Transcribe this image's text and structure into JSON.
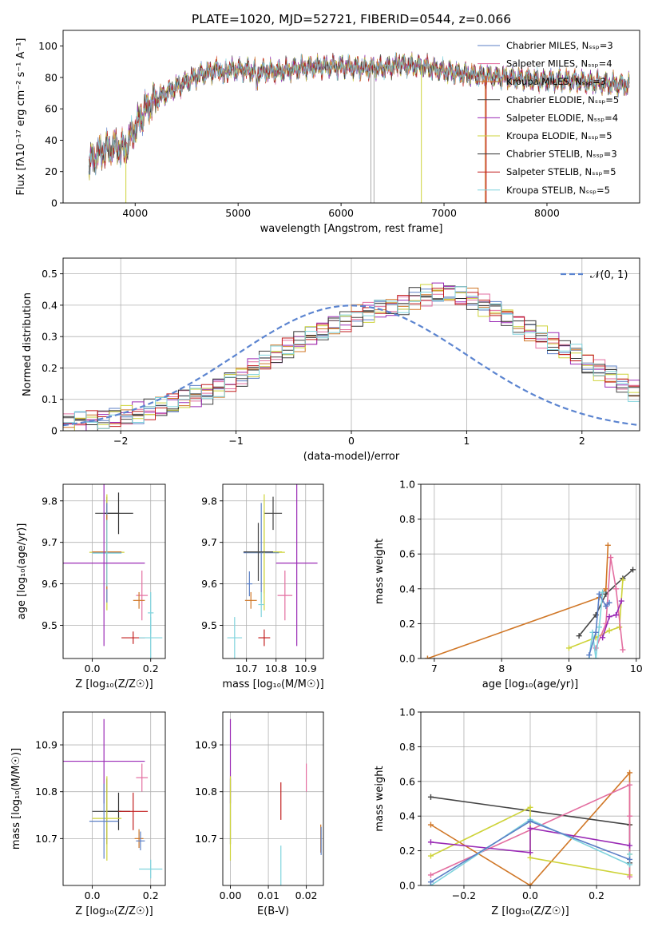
{
  "chart_data": [
    {
      "id": "spectrum",
      "type": "line",
      "title": "PLATE=1020, MJD=52721, FIBERID=0544, z=0.066",
      "xlabel": "wavelength [Angstrom, rest frame]",
      "ylabel": "Flux [fλ10⁻¹⁷ erg cm⁻² s⁻¹ A⁻¹]",
      "xlim": [
        3300,
        8900
      ],
      "ylim": [
        0,
        110
      ],
      "xticks": [
        4000,
        5000,
        6000,
        7000,
        8000
      ],
      "yticks": [
        0,
        20,
        40,
        60,
        80,
        100
      ],
      "grid": false,
      "legend_position": "top-right",
      "series": [
        {
          "name": "Chabrier MILES, Nₛₛₚ=3",
          "color": "#5b7fc6"
        },
        {
          "name": "Salpeter MILES, Nₛₛₚ=4",
          "color": "#e36ea0"
        },
        {
          "name": "Kroupa MILES, Nₛₛₚ=3",
          "color": "#d07727"
        },
        {
          "name": "Chabrier ELODIE, Nₛₛₚ=5",
          "color": "#444444"
        },
        {
          "name": "Salpeter ELODIE, Nₛₛₚ=4",
          "color": "#9a2ab5"
        },
        {
          "name": "Kroupa ELODIE, Nₛₛₚ=5",
          "color": "#ced33a"
        },
        {
          "name": "Chabrier STELIB, Nₛₛₚ=3",
          "color": "#333333"
        },
        {
          "name": "Salpeter STELIB, Nₛₛₚ=5",
          "color": "#c21e1e"
        },
        {
          "name": "Kroupa STELIB, Nₛₛₚ=5",
          "color": "#7fd3dd"
        }
      ],
      "continuum": {
        "x": [
          3550,
          3650,
          3800,
          3900,
          4000,
          4100,
          4200,
          4400,
          4600,
          4800,
          5000,
          5200,
          5400,
          5600,
          5800,
          6000,
          6200,
          6400,
          6600,
          6800,
          7000,
          7200,
          7400,
          7600,
          7800,
          8000,
          8200,
          8400,
          8600,
          8800
        ],
        "y": [
          25,
          32,
          36,
          34,
          48,
          60,
          66,
          74,
          81,
          85,
          85,
          84,
          84,
          86,
          87,
          87,
          86,
          86,
          88,
          87,
          84,
          82,
          81,
          80,
          79,
          78,
          78,
          77,
          76,
          75
        ]
      },
      "dropouts": [
        {
          "x": 3910,
          "color": "#ced33a"
        },
        {
          "x": 6290,
          "color": "#aaaaaa"
        },
        {
          "x": 6320,
          "color": "#aaaaaa"
        },
        {
          "x": 6780,
          "color": "#ced33a"
        },
        {
          "x": 7400,
          "color": "#d07727"
        },
        {
          "x": 7410,
          "color": "#c21e1e"
        }
      ]
    },
    {
      "id": "residuals",
      "type": "area",
      "xlabel": "(data-model)/error",
      "ylabel": "Normed distribution",
      "xlim": [
        -2.5,
        2.5
      ],
      "ylim": [
        0,
        0.55
      ],
      "xticks": [
        -2,
        -1,
        0,
        1,
        2
      ],
      "yticks": [
        0.0,
        0.1,
        0.2,
        0.3,
        0.4,
        0.5
      ],
      "grid": true,
      "legend": [
        {
          "name": "𝒩(0, 1)",
          "color": "#5b84d0"
        }
      ],
      "bin_width": 0.1,
      "bin_start": -2.5,
      "base_values": [
        0.025,
        0.028,
        0.032,
        0.036,
        0.043,
        0.05,
        0.056,
        0.065,
        0.075,
        0.085,
        0.1,
        0.11,
        0.12,
        0.14,
        0.16,
        0.175,
        0.2,
        0.22,
        0.24,
        0.26,
        0.28,
        0.3,
        0.32,
        0.34,
        0.35,
        0.37,
        0.38,
        0.39,
        0.39,
        0.4,
        0.42,
        0.43,
        0.44,
        0.44,
        0.43,
        0.42,
        0.4,
        0.38,
        0.36,
        0.34,
        0.32,
        0.3,
        0.28,
        0.26,
        0.24,
        0.21,
        0.19,
        0.17,
        0.15,
        0.13,
        0.11,
        0.1,
        0.085,
        0.075,
        0.065,
        0.055,
        0.045,
        0.04,
        0.035,
        0.03
      ],
      "series_colors": [
        "#5b7fc6",
        "#e36ea0",
        "#d07727",
        "#444444",
        "#9a2ab5",
        "#ced33a",
        "#333333",
        "#c21e1e",
        "#7fd3dd"
      ]
    },
    {
      "id": "age-vs-Z",
      "type": "scatter",
      "xlabel": "Z [log₁₀(Z/Z☉)]",
      "ylabel": "age  [log₁₀(age/yr)]",
      "xlim": [
        -0.1,
        0.25
      ],
      "ylim": [
        9.42,
        9.84
      ],
      "xticks": [
        0.0,
        0.2
      ],
      "xticklabels": [
        "0.0",
        "0.2"
      ],
      "yticks": [
        9.5,
        9.6,
        9.7,
        9.8
      ],
      "yticklabels": [
        "9.5",
        "9.6",
        "9.7",
        "9.8"
      ],
      "grid": true,
      "points": [
        {
          "x": 0.05,
          "xerr": 0.04,
          "y": 9.77,
          "yerr": 0.04,
          "color": "#444444"
        },
        {
          "x": 0.09,
          "xerr": 0.05,
          "y": 9.77,
          "yerr": 0.05,
          "color": "#333333"
        },
        {
          "x": 0.05,
          "xerr": 0.06,
          "y": 9.676,
          "yerr": 0.14,
          "color": "#ced33a"
        },
        {
          "x": 0.05,
          "xerr": 0.05,
          "y": 9.675,
          "yerr": 0.12,
          "color": "#5b7fc6"
        },
        {
          "x": 0.05,
          "xerr": 0.05,
          "y": 9.677,
          "yerr": 0.09,
          "color": "#d07727"
        },
        {
          "x": 0.05,
          "xerr": 0.05,
          "y": 9.674,
          "yerr": 0.08,
          "color": "#7fd3dd"
        },
        {
          "x": 0.04,
          "xerr": 0.14,
          "y": 9.65,
          "yerr": 0.2,
          "color": "#9a2ab5"
        },
        {
          "x": 0.17,
          "xerr": 0.02,
          "y": 9.572,
          "yerr": 0.06,
          "color": "#e36ea0"
        },
        {
          "x": 0.16,
          "xerr": 0.02,
          "y": 9.56,
          "yerr": 0.02,
          "color": "#d07727"
        },
        {
          "x": 0.2,
          "xerr": 0.01,
          "y": 9.53,
          "yerr": 0.05,
          "color": "#7fd3dd"
        },
        {
          "x": 0.14,
          "xerr": 0.04,
          "y": 9.47,
          "yerr": 0.015,
          "color": "#c21e1e"
        },
        {
          "x": 0.2,
          "xerr": 0.04,
          "y": 9.47,
          "yerr": 0.05,
          "color": "#7fd3dd"
        }
      ]
    },
    {
      "id": "age-vs-mass",
      "type": "scatter",
      "xlabel": "mass [log₁₀(M/M☉)]",
      "xlim": [
        10.62,
        10.96
      ],
      "ylim": [
        9.42,
        9.84
      ],
      "xticks": [
        10.7,
        10.8,
        10.9
      ],
      "xticklabels": [
        "10.7",
        "10.8",
        "10.9"
      ],
      "yticks": [
        9.5,
        9.6,
        9.7,
        9.8
      ],
      "yticklabels": [
        "9.5",
        "9.6",
        "9.7",
        "9.8"
      ],
      "grid": true,
      "points": [
        {
          "x": 10.79,
          "xerr": 0.03,
          "y": 9.77,
          "yerr": 0.04,
          "color": "#444444"
        },
        {
          "x": 10.76,
          "xerr": 0.07,
          "y": 9.676,
          "yerr": 0.14,
          "color": "#ced33a"
        },
        {
          "x": 10.75,
          "xerr": 0.06,
          "y": 9.675,
          "yerr": 0.12,
          "color": "#5b7fc6"
        },
        {
          "x": 10.76,
          "xerr": 0.06,
          "y": 9.677,
          "yerr": 0.1,
          "color": "#ced33a"
        },
        {
          "x": 10.74,
          "xerr": 0.05,
          "y": 9.677,
          "yerr": 0.07,
          "color": "#444444"
        },
        {
          "x": 10.87,
          "xerr": 0.07,
          "y": 9.65,
          "yerr": 0.2,
          "color": "#9a2ab5"
        },
        {
          "x": 10.71,
          "xerr": 0.01,
          "y": 9.6,
          "yerr": 0.03,
          "color": "#5b7fc6"
        },
        {
          "x": 10.83,
          "xerr": 0.025,
          "y": 9.572,
          "yerr": 0.06,
          "color": "#e36ea0"
        },
        {
          "x": 10.715,
          "xerr": 0.02,
          "y": 9.56,
          "yerr": 0.02,
          "color": "#d07727"
        },
        {
          "x": 10.66,
          "xerr": 0.025,
          "y": 9.47,
          "yerr": 0.05,
          "color": "#7fd3dd"
        },
        {
          "x": 10.76,
          "xerr": 0.02,
          "y": 9.47,
          "yerr": 0.02,
          "color": "#c21e1e"
        },
        {
          "x": 10.75,
          "xerr": 0.01,
          "y": 9.55,
          "yerr": 0.03,
          "color": "#7fd3dd"
        }
      ]
    },
    {
      "id": "weight-vs-age",
      "type": "line",
      "xlabel": "age  [log₁₀(age/yr)]",
      "ylabel": "mass weight",
      "xlim": [
        6.8,
        10.05
      ],
      "ylim": [
        0,
        1
      ],
      "xticks": [
        7,
        8,
        9,
        10
      ],
      "xticklabels": [
        "7",
        "8",
        "9",
        "10"
      ],
      "yticks": [
        0.0,
        0.2,
        0.4,
        0.6,
        0.8,
        1.0
      ],
      "yticklabels": [
        "0.0",
        "0.2",
        "0.4",
        "0.6",
        "0.8",
        "1.0"
      ],
      "grid": true,
      "series": [
        {
          "color": "#d07727",
          "x": [
            6.9,
            9.45,
            9.55,
            9.58
          ],
          "y": [
            0.0,
            0.35,
            0.4,
            0.65
          ]
        },
        {
          "color": "#444444",
          "x": [
            9.15,
            9.4,
            9.55,
            9.8,
            9.95
          ],
          "y": [
            0.13,
            0.25,
            0.37,
            0.46,
            0.51
          ]
        },
        {
          "color": "#ced33a",
          "x": [
            9.0,
            9.4,
            9.6,
            9.75,
            9.8
          ],
          "y": [
            0.06,
            0.12,
            0.16,
            0.18,
            0.45
          ]
        },
        {
          "color": "#e36ea0",
          "x": [
            9.4,
            9.55,
            9.62,
            9.7,
            9.8
          ],
          "y": [
            0.06,
            0.2,
            0.58,
            0.4,
            0.05
          ]
        },
        {
          "color": "#9a2ab5",
          "x": [
            9.5,
            9.6,
            9.7,
            9.78
          ],
          "y": [
            0.12,
            0.24,
            0.25,
            0.33
          ]
        },
        {
          "color": "#7fd3dd",
          "x": [
            9.3,
            9.35,
            9.4,
            9.45,
            9.5
          ],
          "y": [
            0.0,
            0.15,
            0.0,
            0.18,
            0.38
          ]
        },
        {
          "color": "#5b7fc6",
          "x": [
            9.3,
            9.4,
            9.45,
            9.55,
            9.6
          ],
          "y": [
            0.02,
            0.15,
            0.37,
            0.3,
            0.32
          ]
        }
      ]
    },
    {
      "id": "mass-vs-Z",
      "type": "scatter",
      "xlabel": "Z [log₁₀(Z/Z☉)]",
      "ylabel": "mass [log₁₀(M/M☉)]",
      "xlim": [
        -0.1,
        0.25
      ],
      "ylim": [
        10.6,
        10.97
      ],
      "xticks": [
        0.0,
        0.2
      ],
      "xticklabels": [
        "0.0",
        "0.2"
      ],
      "yticks": [
        10.7,
        10.8,
        10.9
      ],
      "yticklabels": [
        "10.7",
        "10.8",
        "10.9"
      ],
      "grid": true,
      "points": [
        {
          "x": 0.04,
          "xerr": 0.14,
          "y": 10.865,
          "yerr": 0.09,
          "color": "#9a2ab5"
        },
        {
          "x": 0.17,
          "xerr": 0.02,
          "y": 10.83,
          "yerr": 0.03,
          "color": "#e36ea0"
        },
        {
          "x": 0.05,
          "xerr": 0.05,
          "y": 10.758,
          "yerr": 0.07,
          "color": "#444444"
        },
        {
          "x": 0.09,
          "xerr": 0.04,
          "y": 10.758,
          "yerr": 0.04,
          "color": "#333333"
        },
        {
          "x": 0.14,
          "xerr": 0.05,
          "y": 10.758,
          "yerr": 0.04,
          "color": "#c21e1e"
        },
        {
          "x": 0.05,
          "xerr": 0.05,
          "y": 10.743,
          "yerr": 0.09,
          "color": "#ced33a"
        },
        {
          "x": 0.04,
          "xerr": 0.05,
          "y": 10.737,
          "yerr": 0.08,
          "color": "#5b7fc6"
        },
        {
          "x": 0.16,
          "xerr": 0.015,
          "y": 10.7,
          "yerr": 0.02,
          "color": "#d07727"
        },
        {
          "x": 0.165,
          "xerr": 0.015,
          "y": 10.695,
          "yerr": 0.02,
          "color": "#5b7fc6"
        },
        {
          "x": 0.2,
          "xerr": 0.04,
          "y": 10.635,
          "yerr": 0.02,
          "color": "#7fd3dd"
        }
      ]
    },
    {
      "id": "mass-vs-EBV",
      "type": "scatter",
      "xlabel": "E(B-V)",
      "xlim": [
        -0.002,
        0.0245
      ],
      "ylim": [
        10.6,
        10.97
      ],
      "xticks": [
        0.0,
        0.01,
        0.02
      ],
      "xticklabels": [
        "0.00",
        "0.01",
        "0.02"
      ],
      "yticks": [
        10.7,
        10.8,
        10.9
      ],
      "yticklabels": [
        "10.7",
        "10.8",
        "10.9"
      ],
      "grid": true,
      "points": [
        {
          "x": 0.0,
          "y": 10.865,
          "yerr": 0.09,
          "color": "#9a2ab5"
        },
        {
          "x": 0.0,
          "y": 10.758,
          "yerr": 0.07,
          "color": "#444444"
        },
        {
          "x": 0.0,
          "y": 10.743,
          "yerr": 0.09,
          "color": "#ced33a"
        },
        {
          "x": 0.0133,
          "y": 10.78,
          "yerr": 0.04,
          "color": "#c21e1e"
        },
        {
          "x": 0.0133,
          "y": 10.64,
          "yerr": 0.045,
          "color": "#7fd3dd"
        },
        {
          "x": 0.02,
          "y": 10.83,
          "yerr": 0.03,
          "color": "#e36ea0"
        },
        {
          "x": 0.0238,
          "y": 10.7,
          "yerr": 0.03,
          "color": "#d07727"
        },
        {
          "x": 0.0239,
          "y": 10.695,
          "yerr": 0.03,
          "color": "#5b7fc6"
        }
      ]
    },
    {
      "id": "weight-vs-Z",
      "type": "line",
      "xlabel": "Z [log₁₀(Z/Z☉)]",
      "ylabel": "mass weight",
      "xlim": [
        -0.33,
        0.33
      ],
      "ylim": [
        0,
        1
      ],
      "xticks": [
        -0.2,
        0.0,
        0.2
      ],
      "xticklabels": [
        "−0.2",
        "0.0",
        "0.2"
      ],
      "yticks": [
        0.0,
        0.2,
        0.4,
        0.6,
        0.8,
        1.0
      ],
      "yticklabels": [
        "0.0",
        "0.2",
        "0.4",
        "0.6",
        "0.8",
        "1.0"
      ],
      "grid": true,
      "series": [
        {
          "color": "#d07727",
          "x": [
            -0.3,
            0.0,
            0.3,
            0.3
          ],
          "y": [
            0.35,
            0.0,
            0.65,
            0.35
          ]
        },
        {
          "color": "#444444",
          "x": [
            -0.3,
            0.3,
            0.3
          ],
          "y": [
            0.51,
            0.35,
            0.13
          ]
        },
        {
          "color": "#ced33a",
          "x": [
            -0.3,
            0.0,
            0.0,
            0.3,
            0.3
          ],
          "y": [
            0.17,
            0.45,
            0.16,
            0.06,
            0.18
          ]
        },
        {
          "color": "#e36ea0",
          "x": [
            -0.3,
            0.3,
            0.3,
            0.3
          ],
          "y": [
            0.06,
            0.58,
            0.4,
            0.05
          ]
        },
        {
          "color": "#9a2ab5",
          "x": [
            -0.3,
            0.0,
            0.0,
            0.3
          ],
          "y": [
            0.25,
            0.19,
            0.33,
            0.23
          ]
        },
        {
          "color": "#7fd3dd",
          "x": [
            -0.3,
            0.0,
            0.3,
            0.3
          ],
          "y": [
            0.0,
            0.38,
            0.12,
            0.18
          ]
        },
        {
          "color": "#5b7fc6",
          "x": [
            -0.3,
            0.0,
            0.3
          ],
          "y": [
            0.02,
            0.37,
            0.15
          ]
        }
      ]
    }
  ]
}
